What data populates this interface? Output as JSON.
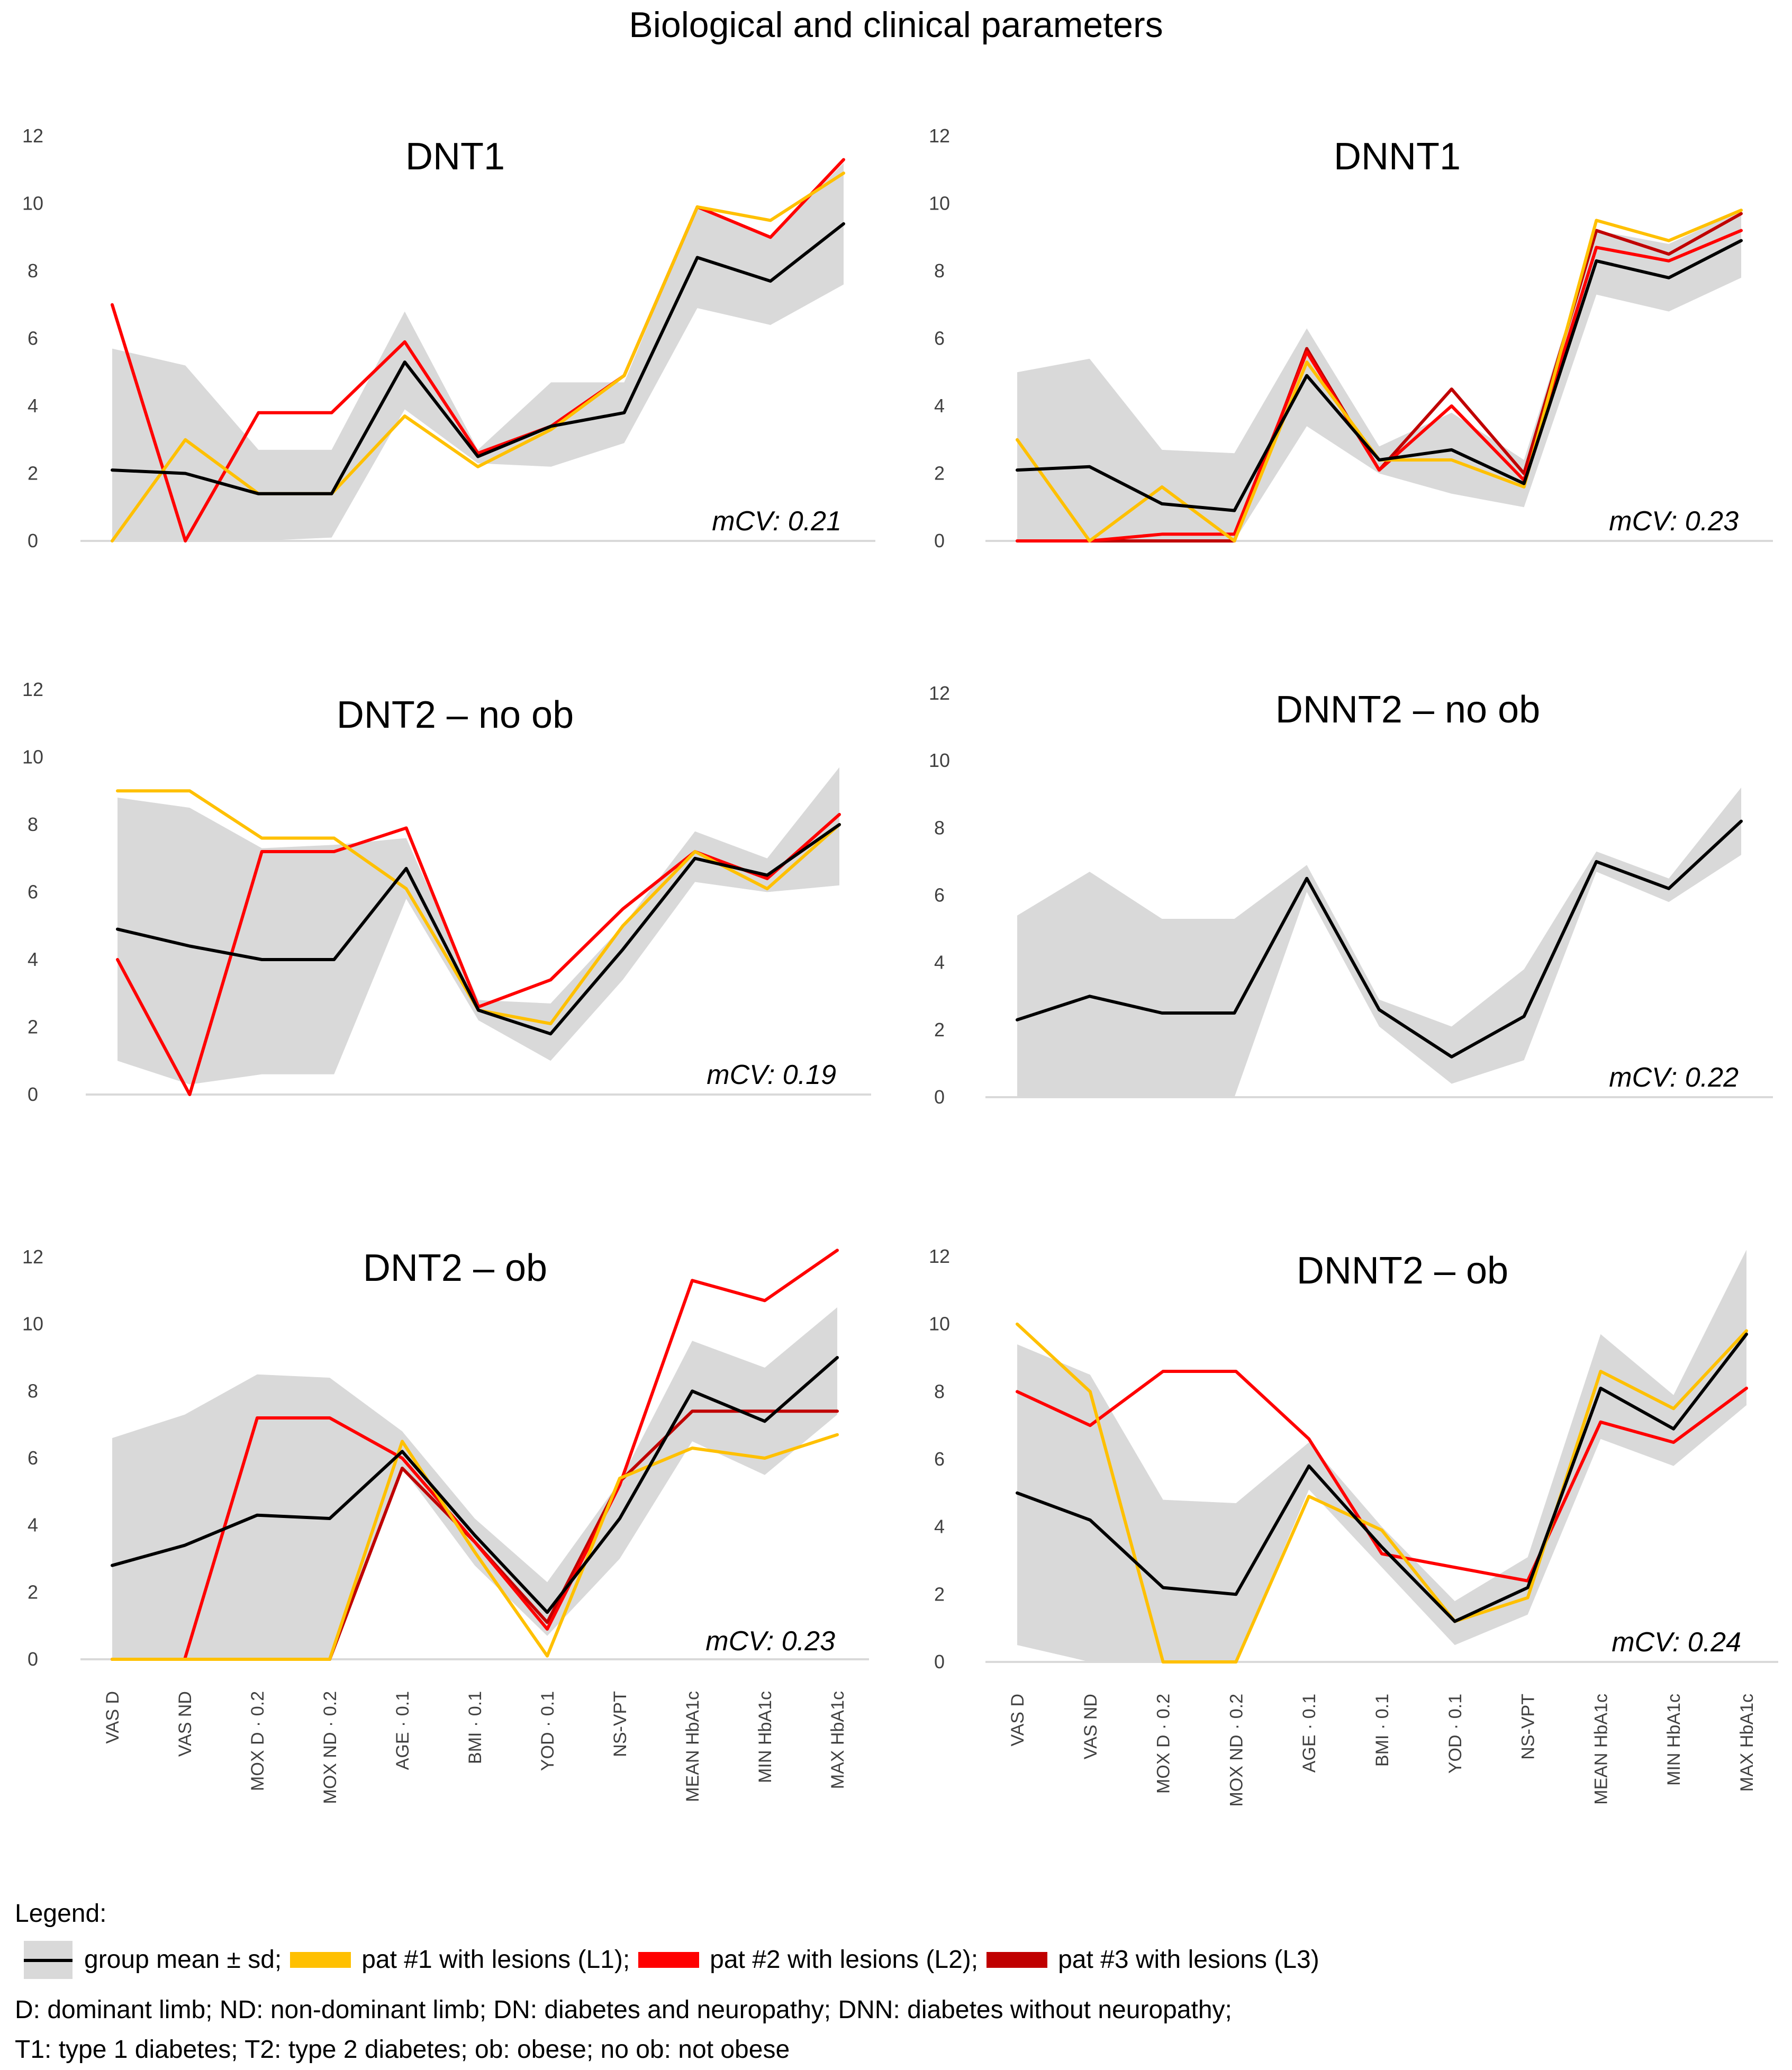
{
  "title": "Biological and clinical parameters",
  "colors": {
    "band": "#d9d9d9",
    "mean": "#000000",
    "L1": "#ffc000",
    "L2": "#ff0000",
    "L3": "#c00000",
    "axis": "#d9d9d9"
  },
  "legend": {
    "title": "Legend:",
    "items": [
      {
        "key": "band",
        "label": "group mean ± sd;"
      },
      {
        "key": "L1",
        "label": "pat #1 with lesions (L1);"
      },
      {
        "key": "L2",
        "label": "pat #2 with lesions (L2);"
      },
      {
        "key": "L3",
        "label": "pat #3 with lesions (L3)"
      }
    ],
    "notes": [
      "D: dominant limb; ND: non-dominant limb; DN: diabetes and neuropathy; DNN: diabetes without neuropathy;",
      "T1: type 1 diabetes; T2: type 2 diabetes; ob: obese; no ob: not obese"
    ]
  },
  "chart_data": [
    {
      "type": "line",
      "title": "DNT1",
      "annotation": "mCV: 0.21",
      "yticks": [
        0,
        2,
        4,
        6,
        8,
        10,
        12
      ],
      "ylim": [
        0,
        12
      ],
      "show_xlabels": false,
      "categories": [
        "VAS D",
        "VAS ND",
        "MOX D · 0.2",
        "MOX ND · 0.2",
        "AGE · 0.1",
        "BMI · 0.1",
        "YOD · 0.1",
        "NS-VPT",
        "MEAN HbA1c",
        "MIN HbA1c",
        "MAX HbA1c"
      ],
      "band": {
        "lower": [
          0.0,
          0.0,
          0.0,
          0.1,
          3.9,
          2.3,
          2.2,
          2.9,
          6.9,
          6.4,
          7.6
        ],
        "upper": [
          5.7,
          5.2,
          2.7,
          2.7,
          6.8,
          2.7,
          4.7,
          4.7,
          9.9,
          9.0,
          11.2
        ]
      },
      "series": [
        {
          "name": "group mean",
          "key": "mean",
          "values": [
            2.1,
            2.0,
            1.4,
            1.4,
            5.3,
            2.5,
            3.4,
            3.8,
            8.4,
            7.7,
            9.4
          ]
        },
        {
          "name": "L1",
          "key": "L1",
          "values": [
            0.0,
            3.0,
            1.4,
            1.4,
            3.7,
            2.2,
            3.3,
            4.9,
            9.9,
            9.5,
            10.9
          ]
        },
        {
          "name": "L2",
          "key": "L2",
          "values": [
            7.0,
            0.0,
            3.8,
            3.8,
            5.9,
            2.6,
            3.4,
            4.9,
            9.9,
            9.0,
            11.3
          ]
        }
      ]
    },
    {
      "type": "line",
      "title": "DNNT1",
      "annotation": "mCV: 0.23",
      "yticks": [
        0,
        2,
        4,
        6,
        8,
        10,
        12
      ],
      "ylim": [
        0,
        12
      ],
      "show_xlabels": false,
      "categories": [
        "VAS D",
        "VAS ND",
        "MOX D · 0.2",
        "MOX ND · 0.2",
        "AGE · 0.1",
        "BMI · 0.1",
        "YOD · 0.1",
        "NS-VPT",
        "MEAN HbA1c",
        "MIN HbA1c",
        "MAX HbA1c"
      ],
      "band": {
        "lower": [
          0.0,
          0.0,
          0.0,
          0.0,
          3.4,
          2.0,
          1.4,
          1.0,
          7.3,
          6.8,
          7.8
        ],
        "upper": [
          5.0,
          5.4,
          2.7,
          2.6,
          6.3,
          2.8,
          3.8,
          2.4,
          9.2,
          8.8,
          9.8
        ]
      },
      "series": [
        {
          "name": "group mean",
          "key": "mean",
          "values": [
            2.1,
            2.2,
            1.1,
            0.9,
            4.9,
            2.4,
            2.7,
            1.7,
            8.3,
            7.8,
            8.9
          ]
        },
        {
          "name": "L1",
          "key": "L1",
          "values": [
            3.0,
            0.0,
            1.6,
            0.0,
            5.3,
            2.4,
            2.4,
            1.6,
            9.5,
            8.9,
            9.8
          ]
        },
        {
          "name": "L2",
          "key": "L2",
          "values": [
            0.0,
            0.0,
            0.2,
            0.2,
            5.6,
            2.1,
            4.0,
            1.8,
            8.7,
            8.3,
            9.2
          ]
        },
        {
          "name": "L3",
          "key": "L3",
          "values": [
            0.0,
            0.0,
            0.0,
            0.0,
            5.7,
            2.1,
            4.5,
            2.0,
            9.2,
            8.5,
            9.7
          ]
        }
      ]
    },
    {
      "type": "line",
      "title": "DNT2 – no ob",
      "annotation": "mCV: 0.19",
      "yticks": [
        0,
        2,
        4,
        6,
        8,
        10,
        12
      ],
      "ylim": [
        0,
        12
      ],
      "show_xlabels": false,
      "categories": [
        "VAS D",
        "VAS ND",
        "MOX D · 0.2",
        "MOX ND · 0.2",
        "AGE · 0.1",
        "BMI · 0.1",
        "YOD · 0.1",
        "NS-VPT",
        "MEAN HbA1c",
        "MIN HbA1c",
        "MAX HbA1c"
      ],
      "band": {
        "lower": [
          1.0,
          0.3,
          0.6,
          0.6,
          5.8,
          2.2,
          1.0,
          3.4,
          6.3,
          6.0,
          6.2
        ],
        "upper": [
          8.8,
          8.5,
          7.3,
          7.4,
          7.6,
          2.8,
          2.7,
          5.0,
          7.8,
          7.0,
          9.7
        ]
      },
      "series": [
        {
          "name": "group mean",
          "key": "mean",
          "values": [
            4.9,
            4.4,
            4.0,
            4.0,
            6.7,
            2.5,
            1.8,
            4.3,
            7.0,
            6.5,
            8.0
          ]
        },
        {
          "name": "L1",
          "key": "L1",
          "values": [
            9.0,
            9.0,
            7.6,
            7.6,
            6.1,
            2.5,
            2.1,
            5.0,
            7.2,
            6.1,
            8.0
          ]
        },
        {
          "name": "L2",
          "key": "L2",
          "values": [
            4.0,
            0.0,
            7.2,
            7.2,
            7.9,
            2.6,
            3.4,
            5.5,
            7.2,
            6.4,
            8.3
          ]
        }
      ]
    },
    {
      "type": "line",
      "title": "DNNT2 – no ob",
      "annotation": "mCV: 0.22",
      "yticks": [
        0,
        2,
        4,
        6,
        8,
        10,
        12
      ],
      "ylim": [
        0,
        12
      ],
      "show_xlabels": false,
      "categories": [
        "VAS D",
        "VAS ND",
        "MOX D · 0.2",
        "MOX ND · 0.2",
        "AGE · 0.1",
        "BMI · 0.1",
        "YOD · 0.1",
        "NS-VPT",
        "MEAN HbA1c",
        "MIN HbA1c",
        "MAX HbA1c"
      ],
      "band": {
        "lower": [
          0.0,
          0.0,
          0.0,
          0.0,
          6.1,
          2.1,
          0.4,
          1.1,
          6.7,
          5.8,
          7.2
        ],
        "upper": [
          5.4,
          6.7,
          5.3,
          5.3,
          6.9,
          2.9,
          2.1,
          3.8,
          7.3,
          6.5,
          9.2
        ]
      },
      "series": [
        {
          "name": "group mean",
          "key": "mean",
          "values": [
            2.3,
            3.0,
            2.5,
            2.5,
            6.5,
            2.6,
            1.2,
            2.4,
            7.0,
            6.2,
            8.2
          ]
        }
      ]
    },
    {
      "type": "line",
      "title": "DNT2 – ob",
      "annotation": "mCV: 0.23",
      "yticks": [
        0,
        2,
        4,
        6,
        8,
        10,
        12
      ],
      "ylim": [
        0,
        12
      ],
      "show_xlabels": true,
      "categories": [
        "VAS D",
        "VAS ND",
        "MOX D · 0.2",
        "MOX ND · 0.2",
        "AGE · 0.1",
        "BMI · 0.1",
        "YOD · 0.1",
        "NS-VPT",
        "MEAN HbA1c",
        "MIN HbA1c",
        "MAX HbA1c"
      ],
      "band": {
        "lower": [
          0.0,
          0.0,
          0.0,
          0.0,
          5.7,
          2.8,
          0.7,
          3.0,
          6.5,
          5.5,
          7.3
        ],
        "upper": [
          6.6,
          7.3,
          8.5,
          8.4,
          6.8,
          4.2,
          2.3,
          5.3,
          9.5,
          8.7,
          10.5
        ]
      },
      "series": [
        {
          "name": "group mean",
          "key": "mean",
          "values": [
            2.8,
            3.4,
            4.3,
            4.2,
            6.2,
            3.7,
            1.4,
            4.2,
            8.0,
            7.1,
            9.0
          ]
        },
        {
          "name": "L1",
          "key": "L1",
          "values": [
            0.0,
            0.0,
            0.0,
            0.0,
            6.5,
            3.2,
            0.1,
            5.4,
            6.3,
            6.0,
            6.7
          ]
        },
        {
          "name": "L2",
          "key": "L2",
          "values": [
            0.0,
            0.0,
            7.2,
            7.2,
            6.0,
            3.5,
            0.9,
            5.2,
            11.3,
            10.7,
            12.2
          ]
        },
        {
          "name": "L3",
          "key": "L3",
          "values": [
            0.0,
            0.0,
            0.0,
            0.0,
            5.7,
            3.5,
            1.1,
            5.3,
            7.4,
            7.4,
            7.4
          ]
        }
      ]
    },
    {
      "type": "line",
      "title": "DNNT2 – ob",
      "annotation": "mCV: 0.24",
      "yticks": [
        0,
        2,
        4,
        6,
        8,
        10,
        12
      ],
      "ylim": [
        0,
        12
      ],
      "show_xlabels": true,
      "categories": [
        "VAS D",
        "VAS ND",
        "MOX D · 0.2",
        "MOX ND · 0.2",
        "AGE · 0.1",
        "BMI · 0.1",
        "YOD · 0.1",
        "NS-VPT",
        "MEAN HbA1c",
        "MIN HbA1c",
        "MAX HbA1c"
      ],
      "band": {
        "lower": [
          0.5,
          0.0,
          0.0,
          0.0,
          5.1,
          2.8,
          0.5,
          1.4,
          6.6,
          5.8,
          7.6
        ],
        "upper": [
          9.4,
          8.5,
          4.8,
          4.7,
          6.5,
          4.0,
          1.8,
          3.1,
          9.7,
          7.9,
          12.2
        ]
      },
      "series": [
        {
          "name": "group mean",
          "key": "mean",
          "values": [
            5.0,
            4.2,
            2.2,
            2.0,
            5.8,
            3.4,
            1.2,
            2.2,
            8.1,
            6.9,
            9.7
          ]
        },
        {
          "name": "L1",
          "key": "L1",
          "values": [
            10.0,
            8.0,
            0.0,
            0.0,
            4.9,
            3.9,
            1.2,
            1.9,
            8.6,
            7.5,
            9.8
          ]
        },
        {
          "name": "L2",
          "key": "L2",
          "values": [
            8.0,
            7.0,
            8.6,
            8.6,
            6.6,
            3.2,
            2.8,
            2.4,
            7.1,
            6.5,
            8.1
          ]
        }
      ]
    }
  ]
}
